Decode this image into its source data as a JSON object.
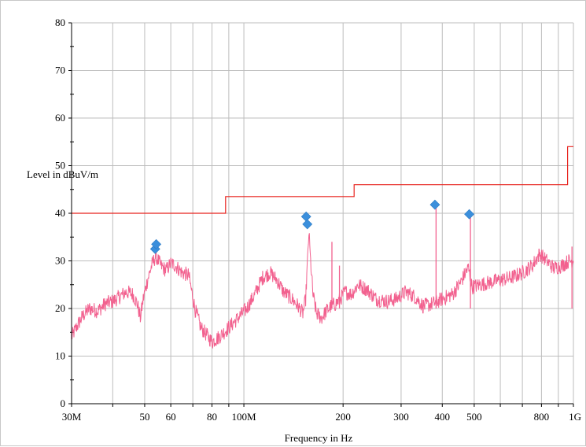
{
  "chart_data": {
    "type": "line",
    "xlabel": "Frequency in Hz",
    "ylabel": "Level in dBuV/m",
    "x_scale": "log",
    "xlim": [
      30000000,
      1000000000
    ],
    "ylim": [
      0,
      80
    ],
    "grid": true,
    "y_ticks": [
      {
        "value": 0,
        "label": "0"
      },
      {
        "value": 10,
        "label": "10"
      },
      {
        "value": 20,
        "label": "20"
      },
      {
        "value": 30,
        "label": "30"
      },
      {
        "value": 40,
        "label": "40"
      },
      {
        "value": 50,
        "label": "50"
      },
      {
        "value": 60,
        "label": "60"
      },
      {
        "value": 70,
        "label": "70"
      },
      {
        "value": 80,
        "label": "80"
      }
    ],
    "x_ticks": [
      {
        "value": 30000000,
        "label": "30M"
      },
      {
        "value": 50000000,
        "label": "50"
      },
      {
        "value": 60000000,
        "label": "60"
      },
      {
        "value": 80000000,
        "label": "80"
      },
      {
        "value": 100000000,
        "label": "100M"
      },
      {
        "value": 200000000,
        "label": "200"
      },
      {
        "value": 300000000,
        "label": "300"
      },
      {
        "value": 400000000,
        "label": "400"
      },
      {
        "value": 500000000,
        "label": "500"
      },
      {
        "value": 800000000,
        "label": "800"
      },
      {
        "value": 1000000000,
        "label": "1G"
      }
    ],
    "x_minor_gridlines": [
      40000000,
      70000000,
      90000000,
      600000000,
      700000000,
      900000000
    ],
    "limit_line": {
      "color": "#e8231e",
      "points": [
        [
          30000000,
          40
        ],
        [
          88000000,
          40
        ],
        [
          88000000,
          43.5
        ],
        [
          216000000,
          43.5
        ],
        [
          216000000,
          46
        ],
        [
          960000000,
          46
        ],
        [
          960000000,
          54
        ],
        [
          1000000000,
          54
        ]
      ]
    },
    "measurement": {
      "color": "#f2618f",
      "points": [
        [
          30000000,
          14
        ],
        [
          31000000,
          16
        ],
        [
          32500000,
          18.5
        ],
        [
          34000000,
          20
        ],
        [
          36000000,
          19.5
        ],
        [
          38000000,
          21
        ],
        [
          40000000,
          21.5
        ],
        [
          42000000,
          22.5
        ],
        [
          44000000,
          23.5
        ],
        [
          46000000,
          23
        ],
        [
          47500000,
          21
        ],
        [
          48500000,
          18
        ],
        [
          49500000,
          22
        ],
        [
          51000000,
          26
        ],
        [
          52500000,
          29
        ],
        [
          54000000,
          31
        ],
        [
          56000000,
          29
        ],
        [
          58000000,
          28
        ],
        [
          60000000,
          29.5
        ],
        [
          62000000,
          29
        ],
        [
          65000000,
          27.5
        ],
        [
          68000000,
          27
        ],
        [
          71000000,
          20
        ],
        [
          74000000,
          16
        ],
        [
          77000000,
          14.5
        ],
        [
          80000000,
          13
        ],
        [
          84000000,
          14
        ],
        [
          90000000,
          16
        ],
        [
          96000000,
          18
        ],
        [
          102000000,
          20
        ],
        [
          108000000,
          23
        ],
        [
          114000000,
          26.5
        ],
        [
          120000000,
          27.5
        ],
        [
          126000000,
          26
        ],
        [
          132000000,
          23.5
        ],
        [
          140000000,
          22
        ],
        [
          146000000,
          20.5
        ],
        [
          151000000,
          19
        ],
        [
          154000000,
          22
        ],
        [
          156000000,
          30
        ],
        [
          157500000,
          36
        ],
        [
          159000000,
          31
        ],
        [
          162000000,
          23
        ],
        [
          166000000,
          19
        ],
        [
          172000000,
          18
        ],
        [
          178000000,
          19.5
        ],
        [
          184000000,
          20.5
        ],
        [
          190000000,
          21
        ],
        [
          196000000,
          22
        ],
        [
          203000000,
          23.5
        ],
        [
          212000000,
          23
        ],
        [
          222000000,
          25
        ],
        [
          236000000,
          24
        ],
        [
          252000000,
          22
        ],
        [
          272000000,
          21.5
        ],
        [
          290000000,
          22
        ],
        [
          310000000,
          23.5
        ],
        [
          330000000,
          22.5
        ],
        [
          350000000,
          20.5
        ],
        [
          375000000,
          21
        ],
        [
          400000000,
          22
        ],
        [
          430000000,
          23
        ],
        [
          455000000,
          25.5
        ],
        [
          470000000,
          27.5
        ],
        [
          480000000,
          28.5
        ],
        [
          492000000,
          24.5
        ],
        [
          520000000,
          25
        ],
        [
          560000000,
          25.5
        ],
        [
          600000000,
          26
        ],
        [
          650000000,
          26.5
        ],
        [
          700000000,
          27.5
        ],
        [
          750000000,
          29
        ],
        [
          790000000,
          31.5
        ],
        [
          830000000,
          30
        ],
        [
          870000000,
          28.5
        ],
        [
          920000000,
          29
        ],
        [
          970000000,
          30
        ],
        [
          1000000000,
          30
        ]
      ],
      "spikes": [
        [
          185000000,
          34
        ],
        [
          195000000,
          29
        ],
        [
          383000000,
          42
        ],
        [
          487000000,
          40
        ],
        [
          990000000,
          33
        ]
      ]
    },
    "markers": {
      "color": "#3b8fdc",
      "points": [
        [
          53800000,
          32.5
        ],
        [
          54200000,
          33.5
        ],
        [
          154500000,
          39.3
        ],
        [
          155800000,
          37.7
        ],
        [
          380000000,
          41.8
        ],
        [
          483000000,
          39.8
        ]
      ]
    }
  }
}
